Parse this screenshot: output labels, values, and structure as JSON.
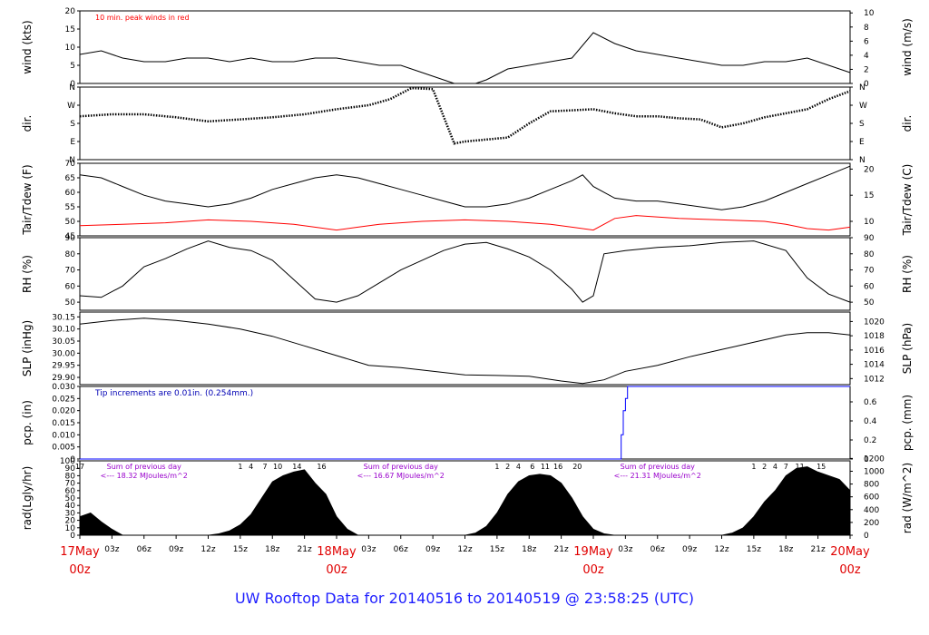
{
  "title": "UW Rooftop Data for 20140516  to  20140519 @ 23:58:25  (UTC)",
  "chart_data": {
    "type": "line",
    "hours": 72,
    "x_tick_labels": [
      "03z",
      "06z",
      "09z",
      "12z",
      "15z",
      "18z",
      "21z",
      "03z",
      "06z",
      "09z",
      "12z",
      "15z",
      "18z",
      "21z",
      "03z",
      "06z",
      "09z",
      "12z",
      "15z",
      "18z",
      "21z"
    ],
    "x_tick_hours": [
      3,
      6,
      9,
      12,
      15,
      18,
      21,
      27,
      30,
      33,
      36,
      39,
      42,
      45,
      51,
      54,
      57,
      60,
      63,
      66,
      69
    ],
    "day_labels": [
      {
        "hour": 0,
        "day": "17May",
        "time": "00z"
      },
      {
        "hour": 24,
        "day": "18May",
        "time": "00z"
      },
      {
        "hour": 48,
        "day": "19May",
        "time": "00z"
      },
      {
        "hour": 72,
        "day": "20May",
        "time": "00z"
      }
    ],
    "panels": [
      {
        "id": "wind",
        "ylabel_left": "wind (kts)",
        "ylabel_right": "wind (m/s)",
        "ylim": [
          0,
          20
        ],
        "yticks": [
          0,
          5,
          10,
          15,
          20
        ],
        "right_ticks": [
          {
            "v": 0,
            "label": "0"
          },
          {
            "v": 3.89,
            "label": "2"
          },
          {
            "v": 7.78,
            "label": "4"
          },
          {
            "v": 11.66,
            "label": "6"
          },
          {
            "v": 15.55,
            "label": "8"
          },
          {
            "v": 19.44,
            "label": "10"
          }
        ],
        "annotation": "10 min. peak winds in red",
        "series": [
          {
            "name": "wind",
            "color": "#000000",
            "x": [
              0,
              2,
              4,
              6,
              8,
              10,
              12,
              14,
              16,
              18,
              20,
              22,
              24,
              26,
              28,
              30,
              32,
              33,
              34,
              35,
              36,
              37,
              38,
              40,
              42,
              44,
              46,
              48,
              50,
              52,
              54,
              56,
              58,
              60,
              62,
              64,
              66,
              68,
              70,
              72
            ],
            "y": [
              8,
              9,
              7,
              6,
              6,
              7,
              7,
              6,
              7,
              6,
              6,
              7,
              7,
              6,
              5,
              5,
              3,
              2,
              1,
              0,
              0,
              0,
              1,
              4,
              5,
              6,
              7,
              14,
              11,
              9,
              8,
              7,
              6,
              5,
              5,
              6,
              6,
              7,
              5,
              3
            ]
          }
        ]
      },
      {
        "id": "dir",
        "ylabel_left": "dir.",
        "ylabel_right": "dir.",
        "ylim": [
          0,
          360
        ],
        "cat_ticks": [
          {
            "v": 0,
            "label": "N"
          },
          {
            "v": 90,
            "label": "E"
          },
          {
            "v": 180,
            "label": "S"
          },
          {
            "v": 270,
            "label": "W"
          },
          {
            "v": 360,
            "label": "N"
          }
        ],
        "series": [
          {
            "name": "direction",
            "color": "#000000",
            "x": [
              0,
              3,
              6,
              9,
              12,
              15,
              18,
              21,
              24,
              27,
              29,
              31,
              33,
              35,
              36,
              38,
              40,
              42,
              44,
              46,
              48,
              50,
              52,
              54,
              56,
              58,
              60,
              62,
              64,
              66,
              68,
              70,
              72
            ],
            "y": [
              215,
              225,
              225,
              210,
              190,
              200,
              210,
              225,
              250,
              270,
              300,
              355,
              350,
              80,
              90,
              100,
              110,
              180,
              240,
              245,
              250,
              230,
              215,
              215,
              205,
              200,
              160,
              180,
              210,
              230,
              250,
              300,
              340
            ]
          }
        ]
      },
      {
        "id": "temp",
        "ylabel_left": "Tair/Tdew (F)",
        "ylabel_right": "Tair/Tdew (C)",
        "ylim": [
          45,
          70
        ],
        "yticks": [
          45,
          50,
          55,
          60,
          65,
          70
        ],
        "right_ticks": [
          {
            "v": 50,
            "label": "10"
          },
          {
            "v": 59,
            "label": "15"
          },
          {
            "v": 68,
            "label": "20"
          }
        ],
        "series": [
          {
            "name": "Tair",
            "color": "#000000",
            "x": [
              0,
              2,
              4,
              6,
              8,
              10,
              12,
              14,
              16,
              18,
              20,
              22,
              24,
              26,
              28,
              30,
              32,
              34,
              36,
              38,
              40,
              42,
              44,
              46,
              47,
              48,
              50,
              52,
              54,
              56,
              58,
              60,
              62,
              64,
              66,
              68,
              70,
              72
            ],
            "y": [
              66,
              65,
              62,
              59,
              57,
              56,
              55,
              56,
              58,
              61,
              63,
              65,
              66,
              65,
              63,
              61,
              59,
              57,
              55,
              55,
              56,
              58,
              61,
              64,
              66,
              62,
              58,
              57,
              57,
              56,
              55,
              54,
              55,
              57,
              60,
              63,
              66,
              69
            ]
          },
          {
            "name": "Tdew",
            "color": "#ff0000",
            "x": [
              0,
              4,
              8,
              12,
              16,
              20,
              24,
              26,
              28,
              32,
              36,
              40,
              44,
              48,
              50,
              52,
              56,
              60,
              64,
              66,
              68,
              70,
              72
            ],
            "y": [
              48.5,
              49,
              49.5,
              50.5,
              50,
              49,
              47,
              48,
              49,
              50,
              50.5,
              50,
              49,
              47,
              51,
              52,
              51,
              50.5,
              50,
              49,
              47.5,
              47,
              48
            ]
          }
        ]
      },
      {
        "id": "rh",
        "ylabel_left": "RH (%)",
        "ylabel_right": "RH (%)",
        "ylim": [
          45,
          90
        ],
        "yticks": [
          50,
          60,
          70,
          80,
          90
        ],
        "right_ticks": [
          {
            "v": 50,
            "label": "50"
          },
          {
            "v": 60,
            "label": "60"
          },
          {
            "v": 70,
            "label": "70"
          },
          {
            "v": 80,
            "label": "80"
          },
          {
            "v": 90,
            "label": "90"
          }
        ],
        "series": [
          {
            "name": "RH",
            "color": "#000000",
            "x": [
              0,
              2,
              4,
              6,
              8,
              10,
              12,
              14,
              16,
              18,
              20,
              22,
              24,
              26,
              28,
              30,
              32,
              34,
              36,
              38,
              40,
              42,
              44,
              46,
              47,
              48,
              49,
              51,
              54,
              57,
              60,
              63,
              66,
              68,
              70,
              72
            ],
            "y": [
              54,
              53,
              60,
              72,
              77,
              83,
              88,
              84,
              82,
              76,
              64,
              52,
              50,
              54,
              62,
              70,
              76,
              82,
              86,
              87,
              83,
              78,
              70,
              58,
              50,
              54,
              80,
              82,
              84,
              85,
              87,
              88,
              82,
              65,
              55,
              50
            ]
          }
        ]
      },
      {
        "id": "slp",
        "ylabel_left": "SLP (inHg)",
        "ylabel_right": "SLP (hPa)",
        "ylim": [
          29.87,
          30.17
        ],
        "yticks": [
          29.9,
          29.95,
          30.0,
          30.05,
          30.1,
          30.15
        ],
        "ytick_labels": [
          "29.90",
          "29.95",
          "30.00",
          "30.05",
          "30.10",
          "30.15"
        ],
        "right_ticks": [
          {
            "v": 29.895,
            "label": "1012"
          },
          {
            "v": 29.954,
            "label": "1014"
          },
          {
            "v": 30.013,
            "label": "1016"
          },
          {
            "v": 30.072,
            "label": "1018"
          },
          {
            "v": 30.131,
            "label": "1020"
          }
        ],
        "series": [
          {
            "name": "SLP",
            "color": "#000000",
            "x": [
              0,
              3,
              6,
              9,
              12,
              15,
              18,
              21,
              24,
              27,
              30,
              33,
              36,
              39,
              42,
              45,
              47,
              49,
              51,
              54,
              57,
              60,
              63,
              66,
              68,
              70,
              72
            ],
            "y": [
              30.12,
              30.135,
              30.145,
              30.135,
              30.12,
              30.1,
              30.07,
              30.03,
              29.99,
              29.95,
              29.94,
              29.925,
              29.91,
              29.908,
              29.905,
              29.885,
              29.875,
              29.89,
              29.925,
              29.95,
              29.985,
              30.015,
              30.045,
              30.075,
              30.085,
              30.085,
              30.075
            ]
          }
        ]
      },
      {
        "id": "pcp",
        "ylabel_left": "pcp. (in)",
        "ylabel_right": "pcp. (mm)",
        "ylim": [
          0,
          0.03
        ],
        "yticks": [
          0,
          0.005,
          0.01,
          0.015,
          0.02,
          0.025,
          0.03
        ],
        "ytick_labels": [
          "0",
          "0.005",
          "0.010",
          "0.015",
          "0.020",
          "0.025",
          "0.030"
        ],
        "right_ticks": [
          {
            "v": 0,
            "label": "0"
          },
          {
            "v": 0.00787,
            "label": "0.2"
          },
          {
            "v": 0.01575,
            "label": "0.4"
          },
          {
            "v": 0.02362,
            "label": "0.6"
          }
        ],
        "annotation": "Tip increments are 0.01in. (0.254mm.)",
        "series": [
          {
            "name": "pcp",
            "color": "#0000ff",
            "x": [
              0,
              50.6,
              50.6,
              50.8,
              50.8,
              51.0,
              51.0,
              51.2,
              51.2,
              72
            ],
            "y": [
              0,
              0,
              0.01,
              0.01,
              0.02,
              0.02,
              0.025,
              0.025,
              0.03,
              0.03
            ]
          }
        ]
      },
      {
        "id": "rad",
        "ylabel_left": "rad(Lgly/hr)",
        "ylabel_right": "rad (W/m^2)",
        "ylim": [
          0,
          100
        ],
        "yticks": [
          0,
          10,
          20,
          30,
          40,
          50,
          60,
          70,
          80,
          90,
          100
        ],
        "right_ticks": [
          {
            "v": 0,
            "label": "0"
          },
          {
            "v": 17.2,
            "label": "200"
          },
          {
            "v": 34.4,
            "label": "400"
          },
          {
            "v": 51.6,
            "label": "600"
          },
          {
            "v": 68.8,
            "label": "800"
          },
          {
            "v": 86.0,
            "label": "1000"
          },
          {
            "v": 103.2,
            "label": "1200"
          }
        ],
        "series": [
          {
            "name": "radiation",
            "color": "#000000",
            "x": [
              0,
              1,
              2,
              3,
              4,
              12,
              13,
              14,
              15,
              16,
              17,
              18,
              19,
              20,
              21,
              22,
              23,
              24,
              25,
              26,
              36,
              37,
              38,
              39,
              40,
              41,
              42,
              43,
              44,
              45,
              46,
              47,
              48,
              49,
              50,
              60,
              61,
              62,
              63,
              64,
              65,
              66,
              67,
              68,
              69,
              70,
              71,
              72
            ],
            "y": [
              25,
              30,
              18,
              8,
              0,
              0,
              2,
              6,
              14,
              28,
              50,
              72,
              80,
              85,
              88,
              70,
              55,
              25,
              8,
              0,
              0,
              3,
              12,
              30,
              55,
              72,
              80,
              82,
              80,
              70,
              50,
              25,
              8,
              2,
              0,
              0,
              3,
              10,
              25,
              45,
              60,
              80,
              90,
              92,
              85,
              80,
              75,
              60
            ]
          }
        ],
        "hour_labels": [
          {
            "hour": 0,
            "label": "17"
          },
          {
            "hour": 15,
            "label": "1"
          },
          {
            "hour": 16,
            "label": "4"
          },
          {
            "hour": 17.3,
            "label": "7"
          },
          {
            "hour": 18.5,
            "label": "10"
          },
          {
            "hour": 20.3,
            "label": "14"
          },
          {
            "hour": 22.6,
            "label": "16"
          },
          {
            "hour": 39,
            "label": "1"
          },
          {
            "hour": 40,
            "label": "2"
          },
          {
            "hour": 41,
            "label": "4"
          },
          {
            "hour": 42.3,
            "label": "6"
          },
          {
            "hour": 43.5,
            "label": "11"
          },
          {
            "hour": 44.7,
            "label": "16"
          },
          {
            "hour": 46.5,
            "label": "20"
          },
          {
            "hour": 63,
            "label": "1"
          },
          {
            "hour": 64,
            "label": "2"
          },
          {
            "hour": 65,
            "label": "4"
          },
          {
            "hour": 66,
            "label": "7"
          },
          {
            "hour": 67.3,
            "label": "11"
          },
          {
            "hour": 69.3,
            "label": "15"
          }
        ],
        "daily_sums": [
          {
            "hour": 6,
            "line1": "Sum of previous day",
            "line2": "<--- 18.32 MJoules/m^2"
          },
          {
            "hour": 30,
            "line1": "Sum of previous day",
            "line2": "<--- 16.67 MJoules/m^2"
          },
          {
            "hour": 54,
            "line1": "Sum of previous day",
            "line2": "<--- 21.31 MJoules/m^2"
          }
        ]
      }
    ]
  }
}
